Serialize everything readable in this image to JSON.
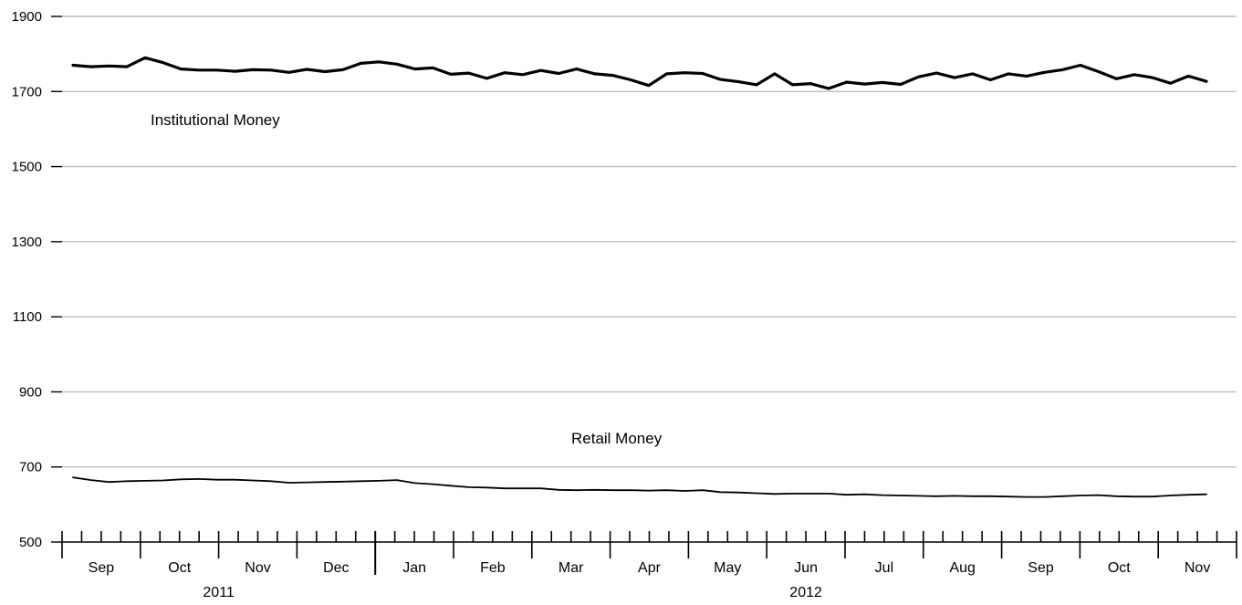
{
  "chart_data": {
    "type": "line",
    "title": "",
    "xlabel": "",
    "ylabel": "",
    "ylim": [
      500,
      1900
    ],
    "y_ticks": [
      500,
      700,
      900,
      1100,
      1300,
      1500,
      1700,
      1900
    ],
    "grid": true,
    "month_labels": [
      "Sep",
      "Oct",
      "Nov",
      "Dec",
      "Jan",
      "Feb",
      "Mar",
      "Apr",
      "May",
      "Jun",
      "Jul",
      "Aug",
      "Sep",
      "Oct",
      "Nov"
    ],
    "year_labels": [
      "2011",
      "2012"
    ],
    "annotations": [
      "Institutional Money",
      "Retail Money"
    ],
    "x_start": "2011-09",
    "x_end": "2012-11",
    "series": [
      {
        "name": "Institutional Money",
        "values": [
          1770,
          1766,
          1768,
          1766,
          1790,
          1777,
          1760,
          1757,
          1757,
          1754,
          1758,
          1757,
          1751,
          1759,
          1753,
          1758,
          1775,
          1779,
          1773,
          1760,
          1763,
          1746,
          1749,
          1735,
          1750,
          1745,
          1756,
          1748,
          1760,
          1747,
          1743,
          1731,
          1716,
          1747,
          1750,
          1748,
          1732,
          1726,
          1718,
          1747,
          1718,
          1721,
          1708,
          1725,
          1720,
          1724,
          1719,
          1739,
          1749,
          1737,
          1747,
          1731,
          1747,
          1741,
          1751,
          1758,
          1770,
          1753,
          1734,
          1745,
          1737,
          1722,
          1741,
          1727
        ]
      },
      {
        "name": "Retail Money",
        "values": [
          672,
          665,
          660,
          662,
          663,
          664,
          667,
          668,
          666,
          666,
          664,
          662,
          658,
          659,
          660,
          661,
          662,
          663,
          665,
          657,
          654,
          650,
          646,
          645,
          643,
          643,
          643,
          639,
          638,
          639,
          638,
          638,
          637,
          638,
          636,
          638,
          633,
          632,
          630,
          628,
          629,
          629,
          629,
          626,
          627,
          625,
          624,
          623,
          622,
          623,
          622,
          622,
          621,
          620,
          620,
          622,
          624,
          625,
          622,
          621,
          621,
          624,
          626,
          627
        ]
      }
    ]
  }
}
